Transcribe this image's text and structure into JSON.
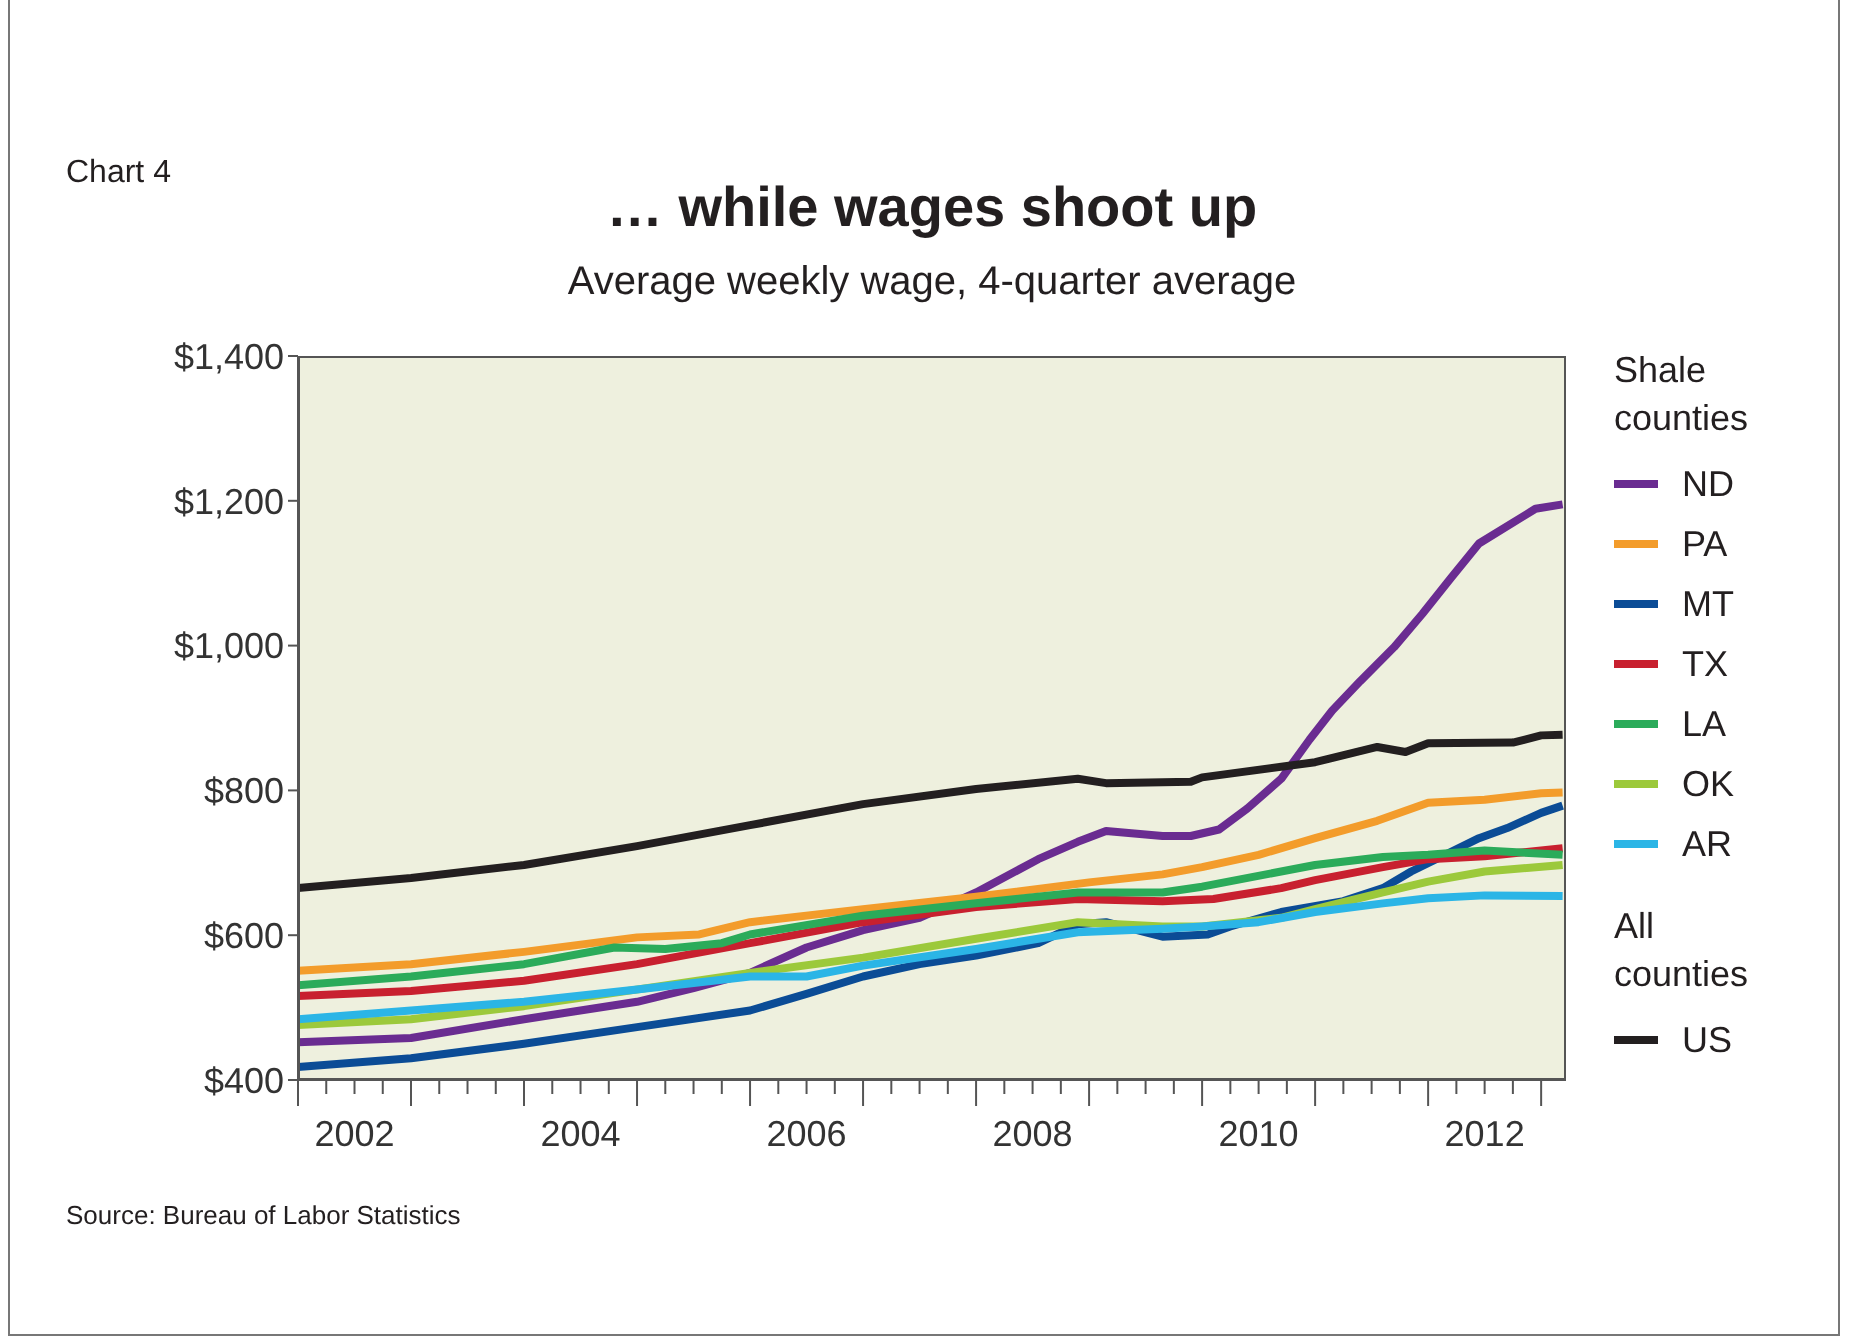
{
  "chart_data": {
    "type": "line",
    "title": "… while wages shoot up",
    "subtitle": "Average weekly wage, 4-quarter average",
    "legend_title": "Shale counties",
    "legend": "right",
    "annotations": [
      "Chart 4",
      "All counties",
      "Source: Bureau of Labor Statistics"
    ],
    "xlim": [
      2002,
      2013.22
    ],
    "xticks": [
      {
        "value": 2002,
        "label": null
      },
      {
        "value": 2002.25,
        "label": null
      },
      {
        "value": 2002.5,
        "label": "2002"
      },
      {
        "value": 2002.75,
        "label": null
      },
      {
        "value": 2003,
        "label": null
      },
      {
        "value": 2003.25,
        "label": null
      },
      {
        "value": 2003.5,
        "label": null
      },
      {
        "value": 2003.75,
        "label": null
      },
      {
        "value": 2004,
        "label": null
      },
      {
        "value": 2004.25,
        "label": null
      },
      {
        "value": 2004.5,
        "label": "2004"
      },
      {
        "value": 2004.75,
        "label": null
      },
      {
        "value": 2005,
        "label": null
      },
      {
        "value": 2005.25,
        "label": null
      },
      {
        "value": 2005.5,
        "label": null
      },
      {
        "value": 2005.75,
        "label": null
      },
      {
        "value": 2006,
        "label": null
      },
      {
        "value": 2006.25,
        "label": null
      },
      {
        "value": 2006.5,
        "label": "2006"
      },
      {
        "value": 2006.75,
        "label": null
      },
      {
        "value": 2007,
        "label": null
      },
      {
        "value": 2007.25,
        "label": null
      },
      {
        "value": 2007.5,
        "label": null
      },
      {
        "value": 2007.75,
        "label": null
      },
      {
        "value": 2008,
        "label": null
      },
      {
        "value": 2008.25,
        "label": null
      },
      {
        "value": 2008.5,
        "label": "2008"
      },
      {
        "value": 2008.75,
        "label": null
      },
      {
        "value": 2009,
        "label": null
      },
      {
        "value": 2009.25,
        "label": null
      },
      {
        "value": 2009.5,
        "label": null
      },
      {
        "value": 2009.75,
        "label": null
      },
      {
        "value": 2010,
        "label": null
      },
      {
        "value": 2010.25,
        "label": null
      },
      {
        "value": 2010.5,
        "label": "2010"
      },
      {
        "value": 2010.75,
        "label": null
      },
      {
        "value": 2011,
        "label": null
      },
      {
        "value": 2011.25,
        "label": null
      },
      {
        "value": 2011.5,
        "label": null
      },
      {
        "value": 2011.75,
        "label": null
      },
      {
        "value": 2012,
        "label": null
      },
      {
        "value": 2012.25,
        "label": null
      },
      {
        "value": 2012.5,
        "label": "2012"
      },
      {
        "value": 2012.75,
        "label": null
      },
      {
        "value": 2013,
        "label": null
      }
    ],
    "ylim": [
      400,
      1400
    ],
    "yticks": [
      {
        "value": 400,
        "label": "$400"
      },
      {
        "value": 600,
        "label": "$600"
      },
      {
        "value": 800,
        "label": "$800"
      },
      {
        "value": 1000,
        "label": "$1,000"
      },
      {
        "value": 1200,
        "label": "$1,200"
      },
      {
        "value": 1400,
        "label": "$1,400"
      }
    ],
    "series": [
      {
        "name": "ND",
        "color": "#6a2c91",
        "x": [
          2002,
          2003,
          2004,
          2005,
          2005.5,
          2006,
          2006.5,
          2007,
          2007.5,
          2008,
          2008.55,
          2008.9,
          2009.15,
          2009.65,
          2009.9,
          2010.15,
          2010.4,
          2010.7,
          2010.95,
          2011.15,
          2011.4,
          2011.7,
          2011.95,
          2012.2,
          2012.45,
          2012.95,
          2013.19
        ],
        "values": [
          452,
          458,
          484,
          508,
          527,
          548,
          583,
          607,
          624,
          659,
          705,
          729,
          744,
          737,
          737,
          746,
          775,
          816,
          870,
          910,
          951,
          998,
          1044,
          1093,
          1141,
          1189,
          1195
        ]
      },
      {
        "name": "PA",
        "color": "#f39c2b",
        "x": [
          2002,
          2003,
          2004,
          2005,
          2005.55,
          2006,
          2007,
          2008,
          2009,
          2009.65,
          2010,
          2010.5,
          2011,
          2011.55,
          2012,
          2012.5,
          2013,
          2013.19
        ],
        "values": [
          551,
          560,
          577,
          597,
          601,
          618,
          636,
          653,
          673,
          684,
          694,
          711,
          734,
          758,
          783,
          787,
          796,
          797
        ]
      },
      {
        "name": "MT",
        "color": "#0b4c96",
        "x": [
          2002,
          2003,
          2004,
          2005,
          2006,
          2006.5,
          2007,
          2007.5,
          2008,
          2008.55,
          2008.9,
          2009.15,
          2009.65,
          2010.05,
          2010.25,
          2010.7,
          2011.25,
          2011.6,
          2011.85,
          2012.45,
          2012.7,
          2013,
          2013.19
        ],
        "values": [
          418,
          430,
          450,
          473,
          496,
          519,
          543,
          560,
          572,
          589,
          615,
          618,
          598,
          601,
          612,
          632,
          647,
          665,
          688,
          734,
          748,
          769,
          779
        ]
      },
      {
        "name": "TX",
        "color": "#c8202f",
        "x": [
          2002,
          2003,
          2004,
          2005,
          2006,
          2007,
          2008,
          2008.9,
          2009.65,
          2010.1,
          2010.7,
          2011,
          2011.6,
          2012,
          2012.5,
          2013.19
        ],
        "values": [
          516,
          523,
          537,
          560,
          589,
          618,
          639,
          650,
          647,
          650,
          665,
          676,
          694,
          705,
          709,
          720
        ]
      },
      {
        "name": "LA",
        "color": "#2bab5a",
        "x": [
          2002,
          2003,
          2004,
          2004.8,
          2005.25,
          2005.75,
          2006,
          2007,
          2008,
          2008.9,
          2009.65,
          2010,
          2011,
          2011.6,
          2012,
          2012.5,
          2013.19
        ],
        "values": [
          531,
          543,
          560,
          583,
          581,
          589,
          601,
          627,
          644,
          659,
          659,
          667,
          697,
          708,
          711,
          717,
          711
        ]
      },
      {
        "name": "OK",
        "color": "#9cc93b",
        "x": [
          2002,
          2003,
          2004,
          2006,
          2007,
          2008,
          2008.9,
          2009.65,
          2010,
          2010.7,
          2011,
          2011.6,
          2012,
          2012.5,
          2013.19
        ],
        "values": [
          476,
          484,
          502,
          548,
          569,
          595,
          618,
          612,
          612,
          624,
          636,
          659,
          674,
          688,
          697
        ]
      },
      {
        "name": "AR",
        "color": "#2bb5e6",
        "x": [
          2002,
          2003,
          2004,
          2005,
          2005.5,
          2006,
          2006.5,
          2007,
          2008,
          2008.9,
          2009.65,
          2010,
          2010.5,
          2011,
          2011.6,
          2012,
          2012.5,
          2013.19
        ],
        "values": [
          484,
          496,
          508,
          525,
          534,
          543,
          543,
          558,
          581,
          604,
          609,
          612,
          618,
          632,
          644,
          651,
          655,
          654
        ]
      },
      {
        "name": "US",
        "color": "#231f20",
        "x": [
          2002,
          2003,
          2004,
          2005,
          2006,
          2007,
          2008,
          2008.9,
          2009.15,
          2009.9,
          2010,
          2011,
          2011.55,
          2011.8,
          2012,
          2012.75,
          2013,
          2013.19
        ],
        "values": [
          665,
          679,
          697,
          723,
          752,
          781,
          802,
          816,
          810,
          812,
          818,
          839,
          860,
          853,
          865,
          866,
          876,
          877
        ]
      }
    ]
  }
}
